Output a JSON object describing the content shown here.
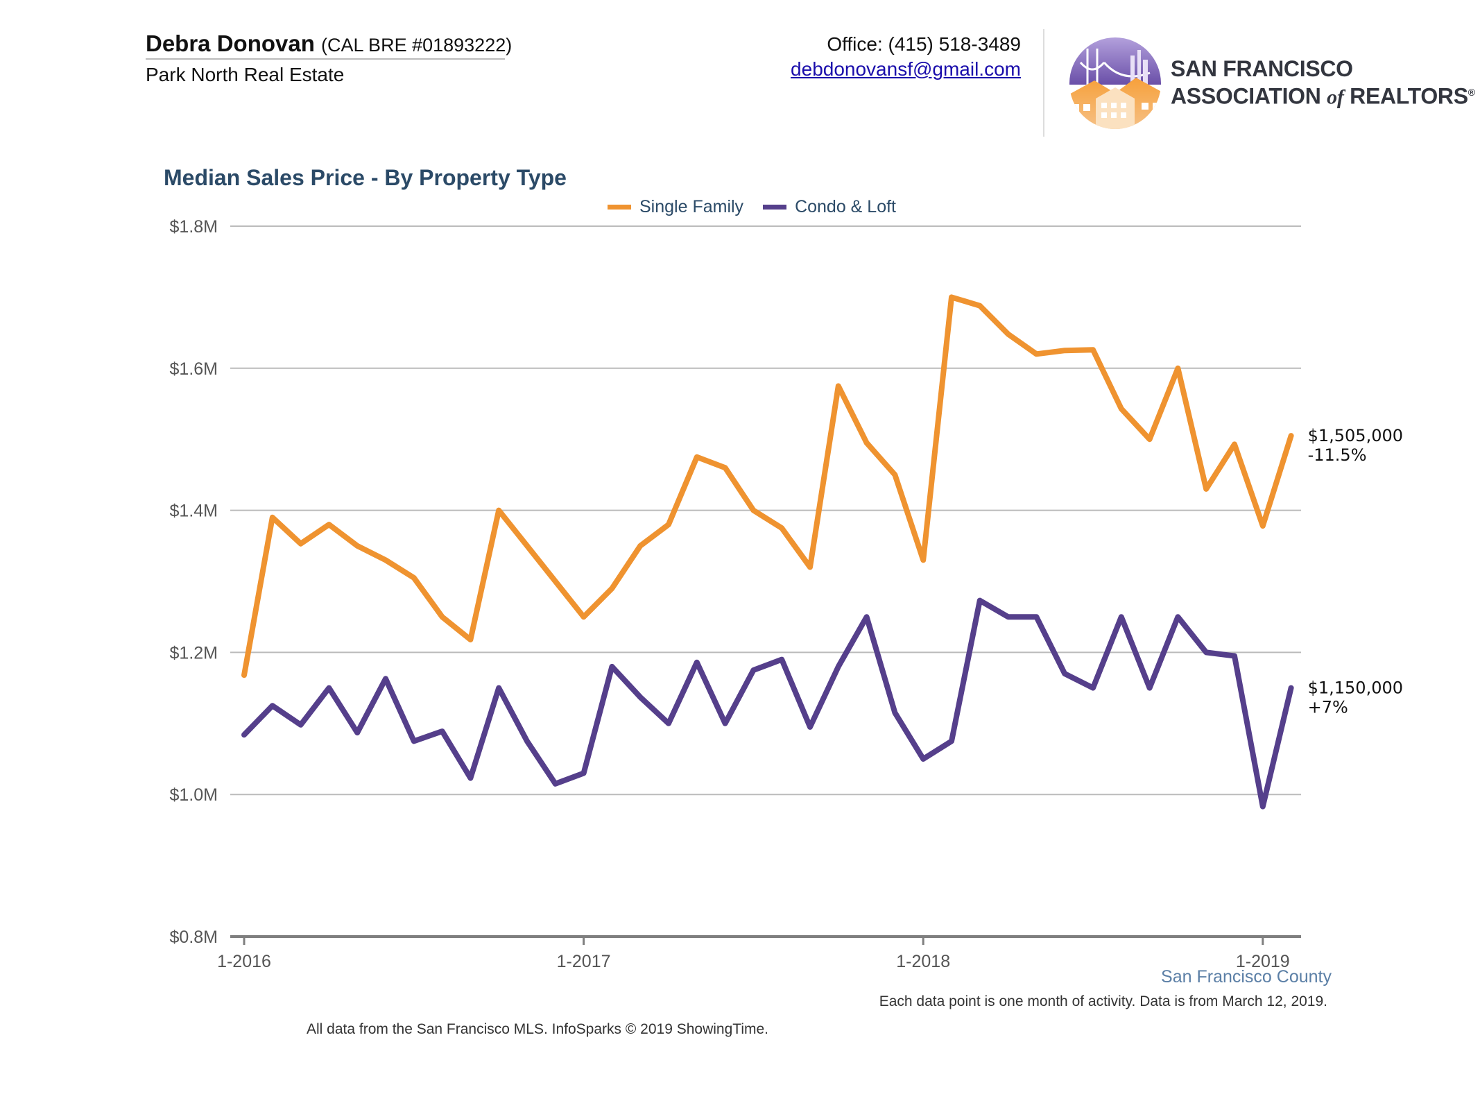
{
  "header": {
    "agent_name": "Debra Donovan",
    "agent_license": "(CAL BRE #01893222)",
    "brokerage": "Park North Real Estate",
    "office_phone": "Office: (415) 518-3489",
    "email": "debdonovansf@gmail.com",
    "logo": {
      "icon": "golden-gate-houses-logo-icon",
      "line1": "SAN FRANCISCO",
      "line2a": "ASSOCIATION ",
      "line2b": "of",
      "line2c": " REALTORS",
      "reg": "®"
    }
  },
  "colors": {
    "single_family": "#ef9330",
    "condo_loft": "#553f8b",
    "title": "#2b4a67",
    "grid": "#bbbbbb",
    "axis": "#7f7f7f",
    "county": "#5b7fa6"
  },
  "chart_data": {
    "type": "line",
    "title": "Median Sales Price - By Property Type",
    "y_ticks": [
      "$0.8M",
      "$1.0M",
      "$1.2M",
      "$1.4M",
      "$1.6M",
      "$1.8M"
    ],
    "y_tick_values": [
      800000,
      1000000,
      1200000,
      1400000,
      1600000,
      1800000
    ],
    "ylim": [
      800000,
      1800000
    ],
    "x_ticks": [
      "1-2016",
      "1-2017",
      "1-2018",
      "1-2019"
    ],
    "x_tick_months": [
      "2016-01",
      "2017-01",
      "2018-01",
      "2019-01"
    ],
    "x": [
      "2016-01",
      "2016-02",
      "2016-03",
      "2016-04",
      "2016-05",
      "2016-06",
      "2016-07",
      "2016-08",
      "2016-09",
      "2016-10",
      "2016-11",
      "2016-12",
      "2017-01",
      "2017-02",
      "2017-03",
      "2017-04",
      "2017-05",
      "2017-06",
      "2017-07",
      "2017-08",
      "2017-09",
      "2017-10",
      "2017-11",
      "2017-12",
      "2018-01",
      "2018-02",
      "2018-03",
      "2018-04",
      "2018-05",
      "2018-06",
      "2018-07",
      "2018-08",
      "2018-09",
      "2018-10",
      "2018-11",
      "2018-12",
      "2019-01",
      "2019-02"
    ],
    "grid": true,
    "legend_position": "top-center",
    "series": [
      {
        "name": "Single Family",
        "color_key": "single_family",
        "values": [
          1168000,
          1390000,
          1353000,
          1380000,
          1350000,
          1330000,
          1305000,
          1250000,
          1218000,
          1400000,
          1350000,
          1300000,
          1250000,
          1290000,
          1350000,
          1380000,
          1475000,
          1460000,
          1400000,
          1375000,
          1320000,
          1575000,
          1495000,
          1450000,
          1330000,
          1700000,
          1688000,
          1648000,
          1620000,
          1625000,
          1626000,
          1543000,
          1500000,
          1600000,
          1430000,
          1493000,
          1378000,
          1505000
        ],
        "end_label_value": "$1,505,000",
        "end_label_change": "-11.5%"
      },
      {
        "name": "Condo & Loft",
        "color_key": "condo_loft",
        "values": [
          1084000,
          1125000,
          1098000,
          1150000,
          1087000,
          1163000,
          1075000,
          1089000,
          1023000,
          1150000,
          1075000,
          1015000,
          1030000,
          1180000,
          1137000,
          1100000,
          1186000,
          1100000,
          1175000,
          1190000,
          1095000,
          1180000,
          1250000,
          1115000,
          1050000,
          1075000,
          1273000,
          1250000,
          1250000,
          1170000,
          1150000,
          1250000,
          1150000,
          1250000,
          1200000,
          1195000,
          983000,
          1150000
        ],
        "end_label_value": "$1,150,000",
        "end_label_change": "+7%"
      }
    ]
  },
  "footer": {
    "county": "San Francisco County",
    "note": "Each data point is one month of activity. Data is from March 12, 2019.",
    "source": "All data from the San Francisco MLS. InfoSparks © 2019 ShowingTime."
  }
}
